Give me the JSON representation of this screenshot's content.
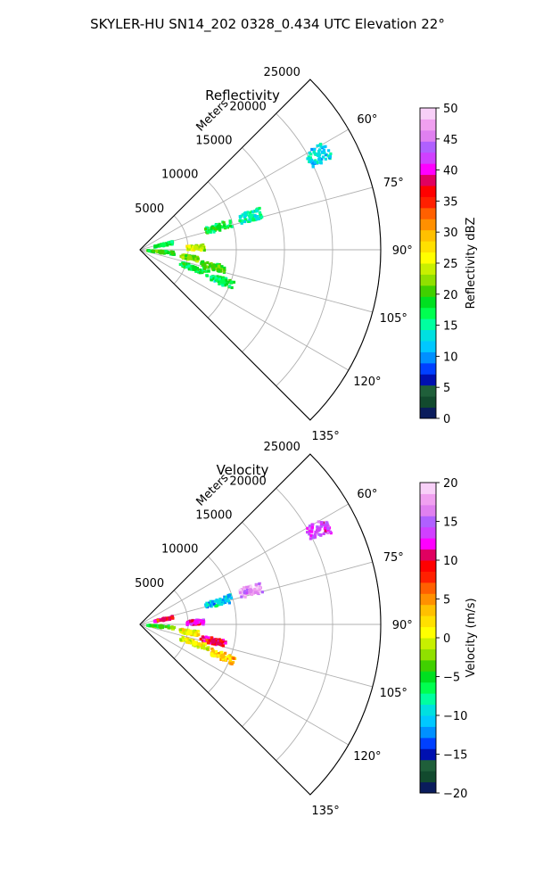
{
  "figure_title": "SKYLER-HU  SN14_202  0328_0.434 UTC Elevation 22°",
  "chart_data": [
    {
      "type": "polar-sector",
      "title": "Reflectivity",
      "range_label": "Meters",
      "range_ticks": [
        "5000",
        "10000",
        "15000",
        "20000",
        "25000"
      ],
      "range_values": [
        5000,
        10000,
        15000,
        20000,
        25000
      ],
      "angle_ticks": [
        "60°",
        "75°",
        "90°",
        "105°",
        "120°",
        "135°"
      ],
      "angle_values": [
        60,
        75,
        90,
        105,
        120,
        135
      ],
      "angle_range": [
        45,
        135
      ],
      "range_max": 25000,
      "grid": true,
      "colorbar": {
        "label": "Reflectivity dBZ",
        "min": 0,
        "max": 50,
        "ticks": [
          "0",
          "5",
          "10",
          "15",
          "20",
          "25",
          "30",
          "35",
          "40",
          "45",
          "50"
        ],
        "colormap": [
          "#0a1c5c",
          "#124a2e",
          "#1f5f3a",
          "#0010b0",
          "#0040ff",
          "#0090ff",
          "#00c8ff",
          "#00e0e0",
          "#00ffa0",
          "#00ff50",
          "#00e020",
          "#40d000",
          "#90e000",
          "#c8f000",
          "#ffff00",
          "#ffe000",
          "#ffc000",
          "#ff9000",
          "#ff6000",
          "#ff2000",
          "#ff0000",
          "#e00060",
          "#ff00ff",
          "#d040ff",
          "#b060ff",
          "#e080f0",
          "#f0a0f0",
          "#f8d0f8"
        ]
      },
      "echoes": [
        {
          "angle": 62,
          "range": 21000,
          "spread": 1200,
          "value": 13
        },
        {
          "angle": 74,
          "range": 8500,
          "spread": 1400,
          "value": 18
        },
        {
          "angle": 73,
          "range": 12000,
          "spread": 1200,
          "value": 15
        },
        {
          "angle": 78,
          "range": 2500,
          "spread": 1000,
          "value": 17
        },
        {
          "angle": 88,
          "range": 5800,
          "spread": 900,
          "value": 24
        },
        {
          "angle": 96,
          "range": 2200,
          "spread": 1400,
          "value": 20
        },
        {
          "angle": 99,
          "range": 5200,
          "spread": 1000,
          "value": 22
        },
        {
          "angle": 103,
          "range": 7800,
          "spread": 1300,
          "value": 20
        },
        {
          "angle": 109,
          "range": 6000,
          "spread": 1600,
          "value": 18
        },
        {
          "angle": 111,
          "range": 9200,
          "spread": 1300,
          "value": 17
        }
      ]
    },
    {
      "type": "polar-sector",
      "title": "Velocity",
      "range_label": "Meters",
      "range_ticks": [
        "5000",
        "10000",
        "15000",
        "20000",
        "25000"
      ],
      "range_values": [
        5000,
        10000,
        15000,
        20000,
        25000
      ],
      "angle_ticks": [
        "60°",
        "75°",
        "90°",
        "105°",
        "120°",
        "135°"
      ],
      "angle_values": [
        60,
        75,
        90,
        105,
        120,
        135
      ],
      "angle_range": [
        45,
        135
      ],
      "range_max": 25000,
      "grid": true,
      "colorbar": {
        "label": "Velocity (m/s)",
        "min": -20,
        "max": 20,
        "ticks": [
          "−20",
          "−15",
          "−10",
          "−5",
          "0",
          "5",
          "10",
          "15",
          "20"
        ],
        "colormap": [
          "#0a1c5c",
          "#124a2e",
          "#1f5f3a",
          "#0010b0",
          "#0040ff",
          "#0090ff",
          "#00c8ff",
          "#00e0e0",
          "#00ffa0",
          "#00ff50",
          "#00e020",
          "#40d000",
          "#90e000",
          "#c8f000",
          "#ffff00",
          "#ffe000",
          "#ffc000",
          "#ff9000",
          "#ff6000",
          "#ff2000",
          "#ff0000",
          "#e00060",
          "#ff00ff",
          "#d040ff",
          "#b060ff",
          "#e080f0",
          "#f0a0f0",
          "#f8d0f8"
        ]
      },
      "echoes": [
        {
          "angle": 62,
          "range": 21000,
          "spread": 1200,
          "value": 14
        },
        {
          "angle": 74,
          "range": 8500,
          "spread": 1400,
          "value": -10
        },
        {
          "angle": 73,
          "range": 12000,
          "spread": 1200,
          "value": 17
        },
        {
          "angle": 78,
          "range": 2500,
          "spread": 1000,
          "value": 10
        },
        {
          "angle": 88,
          "range": 5800,
          "spread": 900,
          "value": 12
        },
        {
          "angle": 96,
          "range": 2200,
          "spread": 1400,
          "value": -4
        },
        {
          "angle": 99,
          "range": 5200,
          "spread": 1000,
          "value": 1
        },
        {
          "angle": 103,
          "range": 7800,
          "spread": 1300,
          "value": 10
        },
        {
          "angle": 109,
          "range": 6000,
          "spread": 1600,
          "value": 1
        },
        {
          "angle": 111,
          "range": 9200,
          "spread": 1300,
          "value": 3
        }
      ]
    }
  ]
}
